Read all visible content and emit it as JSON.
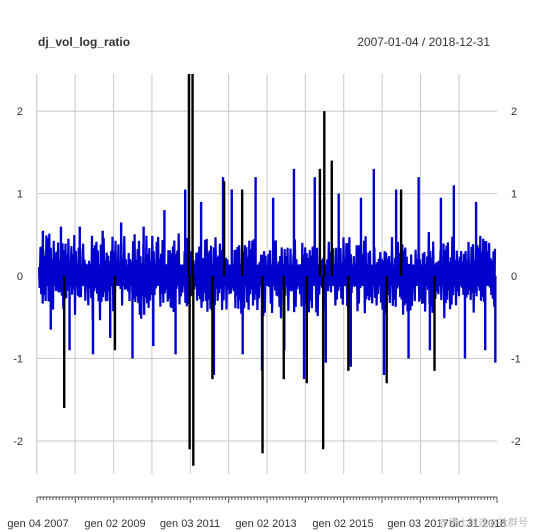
{
  "chart_data": {
    "type": "line",
    "title": "dj_vol_log_ratio",
    "date_range": "2007-01-04 / 2018-12-31",
    "x_start": "2007-01-04",
    "x_end": "2018-12-31",
    "ylim": [
      -2.4,
      2.45
    ],
    "y_ticks": [
      "2",
      "1",
      "0",
      "-1",
      "-2"
    ],
    "x_tick_labels": [
      "gen 04 2007",
      "gen 02 2009",
      "gen 03 2011",
      "gen 02 2013",
      "gen 02 2015",
      "gen 03 2017",
      "dic 31 2018"
    ],
    "grid": true,
    "series": [
      {
        "color": "#0000cc",
        "band_low": -0.25,
        "band_high": 0.4,
        "spikes": [
          {
            "x": "2007-03-01",
            "y": 0.55
          },
          {
            "x": "2007-05-15",
            "y": -0.65
          },
          {
            "x": "2007-08-20",
            "y": 0.6
          },
          {
            "x": "2007-11-10",
            "y": -0.9
          },
          {
            "x": "2008-02-15",
            "y": 0.6
          },
          {
            "x": "2008-06-20",
            "y": -0.95
          },
          {
            "x": "2008-09-20",
            "y": 0.55
          },
          {
            "x": "2008-12-01",
            "y": -0.75
          },
          {
            "x": "2009-03-15",
            "y": 0.65
          },
          {
            "x": "2009-07-01",
            "y": -1.0
          },
          {
            "x": "2009-10-15",
            "y": 0.6
          },
          {
            "x": "2010-01-15",
            "y": -0.85
          },
          {
            "x": "2010-05-01",
            "y": 0.8
          },
          {
            "x": "2010-08-15",
            "y": -0.95
          },
          {
            "x": "2010-11-15",
            "y": 1.05
          },
          {
            "x": "2011-04-15",
            "y": 0.9
          },
          {
            "x": "2011-08-15",
            "y": -1.2
          },
          {
            "x": "2011-11-10",
            "y": 1.2
          },
          {
            "x": "2012-02-01",
            "y": 1.05
          },
          {
            "x": "2012-05-15",
            "y": -0.95
          },
          {
            "x": "2012-09-15",
            "y": 1.2
          },
          {
            "x": "2012-11-15",
            "y": -1.15
          },
          {
            "x": "2013-03-01",
            "y": 0.95
          },
          {
            "x": "2013-06-15",
            "y": -0.9
          },
          {
            "x": "2013-09-15",
            "y": 1.3
          },
          {
            "x": "2013-12-20",
            "y": -1.25
          },
          {
            "x": "2014-04-01",
            "y": 1.2
          },
          {
            "x": "2014-07-15",
            "y": -1.05
          },
          {
            "x": "2014-11-15",
            "y": 1.0
          },
          {
            "x": "2015-03-10",
            "y": -1.1
          },
          {
            "x": "2015-06-15",
            "y": 0.95
          },
          {
            "x": "2015-10-15",
            "y": 1.3
          },
          {
            "x": "2016-01-20",
            "y": -1.2
          },
          {
            "x": "2016-05-15",
            "y": 1.05
          },
          {
            "x": "2016-09-10",
            "y": -1.0
          },
          {
            "x": "2016-12-15",
            "y": 1.2
          },
          {
            "x": "2017-04-01",
            "y": -0.9
          },
          {
            "x": "2017-07-15",
            "y": 0.95
          },
          {
            "x": "2017-11-15",
            "y": 1.1
          },
          {
            "x": "2018-03-01",
            "y": -1.0
          },
          {
            "x": "2018-06-15",
            "y": 0.9
          },
          {
            "x": "2018-09-10",
            "y": -0.9
          },
          {
            "x": "2018-12-15",
            "y": -1.05
          }
        ]
      },
      {
        "color": "#000000",
        "spikes": [
          {
            "x": "2007-09-20",
            "y": -1.6
          },
          {
            "x": "2009-01-15",
            "y": -0.9
          },
          {
            "x": "2010-12-20",
            "y": 2.45
          },
          {
            "x": "2010-12-27",
            "y": -2.1
          },
          {
            "x": "2011-01-24",
            "y": 2.45
          },
          {
            "x": "2011-01-31",
            "y": -2.3
          },
          {
            "x": "2011-08-01",
            "y": -1.25
          },
          {
            "x": "2011-11-20",
            "y": 1.15
          },
          {
            "x": "2012-05-10",
            "y": 1.05
          },
          {
            "x": "2012-11-20",
            "y": -2.15
          },
          {
            "x": "2013-06-10",
            "y": -1.25
          },
          {
            "x": "2014-01-15",
            "y": -1.3
          },
          {
            "x": "2014-05-20",
            "y": 1.3
          },
          {
            "x": "2014-06-20",
            "y": -2.1
          },
          {
            "x": "2014-07-01",
            "y": 2.0
          },
          {
            "x": "2014-09-10",
            "y": 1.4
          },
          {
            "x": "2015-02-15",
            "y": -1.15
          },
          {
            "x": "2016-02-15",
            "y": -1.3
          },
          {
            "x": "2016-07-01",
            "y": 1.05
          },
          {
            "x": "2017-05-15",
            "y": -1.15
          }
        ]
      }
    ]
  },
  "watermark": "@博士前途@社群号"
}
